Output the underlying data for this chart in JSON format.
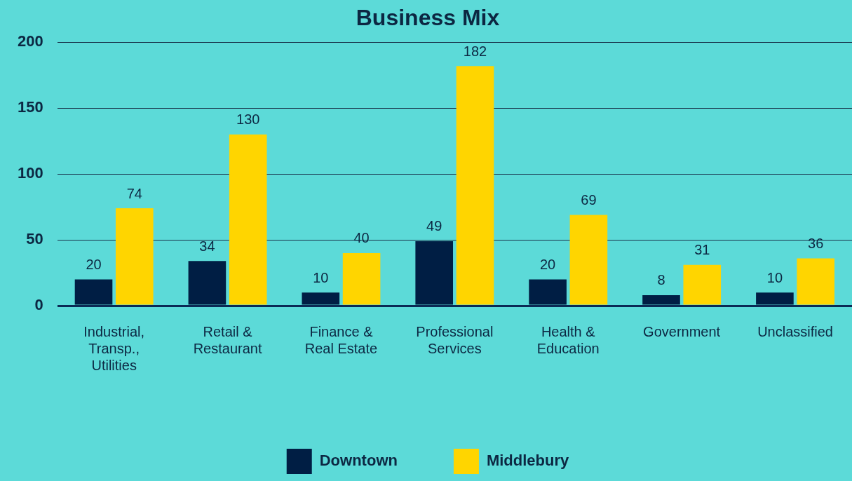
{
  "chart_data": {
    "type": "bar",
    "title": "Business Mix",
    "categories": [
      "Industrial, Transp., Utilities",
      "Retail & Restaurant",
      "Finance & Real Estate",
      "Professional Services",
      "Health & Education",
      "Government",
      "Unclassified"
    ],
    "series": [
      {
        "name": "Downtown",
        "color": "#001e44",
        "values": [
          20,
          34,
          10,
          49,
          20,
          8,
          10
        ]
      },
      {
        "name": "Middlebury",
        "color": "#ffd500",
        "values": [
          74,
          130,
          40,
          182,
          69,
          31,
          36
        ]
      }
    ],
    "ylim": [
      0,
      200
    ],
    "yticks": [
      0,
      50,
      100,
      150,
      200
    ],
    "grid": "y",
    "legend": "bottom",
    "data_labels": true
  }
}
